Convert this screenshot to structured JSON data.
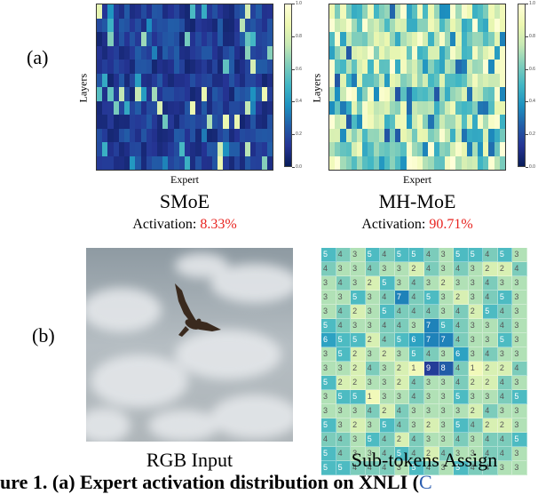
{
  "panel_a": {
    "label": "(a)",
    "smoe": {
      "title": "SMoE",
      "activation_label": "Activation: ",
      "activation_value": "8.33%",
      "xlabel": "Expert",
      "ylabel": "Layers",
      "colorbar_ticks": [
        "1.0",
        "0.8",
        "0.6",
        "0.4",
        "0.2",
        "0.0"
      ]
    },
    "mhmoe": {
      "title": "MH-MoE",
      "activation_label": "Activation: ",
      "activation_value": "90.71%",
      "xlabel": "Expert",
      "ylabel": "Layers",
      "colorbar_ticks": [
        "1.0",
        "0.8",
        "0.6",
        "0.4",
        "0.2",
        "0.0"
      ]
    }
  },
  "panel_b": {
    "label": "(b)",
    "rgb_caption": "RGB Input",
    "subtokens_caption": "Sub-tokens Assign",
    "subtoken_grid": [
      [
        5,
        4,
        3,
        5,
        4,
        5,
        5,
        4,
        3,
        5,
        5,
        4,
        5,
        3
      ],
      [
        4,
        3,
        3,
        4,
        3,
        3,
        2,
        4,
        3,
        4,
        3,
        2,
        2,
        4
      ],
      [
        3,
        4,
        3,
        2,
        5,
        3,
        4,
        3,
        2,
        3,
        3,
        4,
        3,
        3
      ],
      [
        3,
        3,
        5,
        3,
        4,
        7,
        4,
        5,
        3,
        2,
        3,
        4,
        5,
        3
      ],
      [
        3,
        4,
        2,
        3,
        5,
        4,
        4,
        4,
        3,
        4,
        2,
        5,
        4,
        3
      ],
      [
        5,
        4,
        3,
        3,
        4,
        4,
        3,
        7,
        5,
        4,
        3,
        3,
        4,
        3
      ],
      [
        6,
        5,
        5,
        2,
        4,
        5,
        6,
        7,
        7,
        4,
        3,
        3,
        5,
        3
      ],
      [
        3,
        5,
        2,
        3,
        2,
        3,
        5,
        4,
        3,
        6,
        3,
        4,
        3,
        3
      ],
      [
        3,
        3,
        2,
        4,
        3,
        2,
        1,
        9,
        8,
        4,
        1,
        2,
        2,
        4
      ],
      [
        5,
        2,
        2,
        3,
        3,
        2,
        4,
        3,
        3,
        4,
        2,
        2,
        4,
        3
      ],
      [
        3,
        5,
        5,
        1,
        3,
        3,
        4,
        3,
        3,
        5,
        3,
        3,
        4,
        5
      ],
      [
        3,
        3,
        3,
        4,
        2,
        4,
        3,
        3,
        3,
        3,
        2,
        4,
        3,
        3
      ],
      [
        5,
        3,
        2,
        3,
        5,
        4,
        3,
        2,
        3,
        5,
        4,
        2,
        2,
        3
      ],
      [
        4,
        4,
        3,
        5,
        4,
        2,
        4,
        3,
        3,
        4,
        3,
        4,
        4,
        5
      ],
      [
        5,
        4,
        3,
        3,
        4,
        5,
        4,
        2,
        4,
        3,
        3,
        4,
        4,
        3
      ],
      [
        5,
        5,
        4,
        4,
        4,
        3,
        5,
        4,
        3,
        5,
        4,
        4,
        3,
        3
      ]
    ]
  },
  "footer": {
    "text": "ure 1. (a) Expert activation distribution on XNLI (",
    "cite": "C"
  },
  "colors": {
    "highlight_red": "#e8231f",
    "cite_blue": "#2a5db0"
  }
}
